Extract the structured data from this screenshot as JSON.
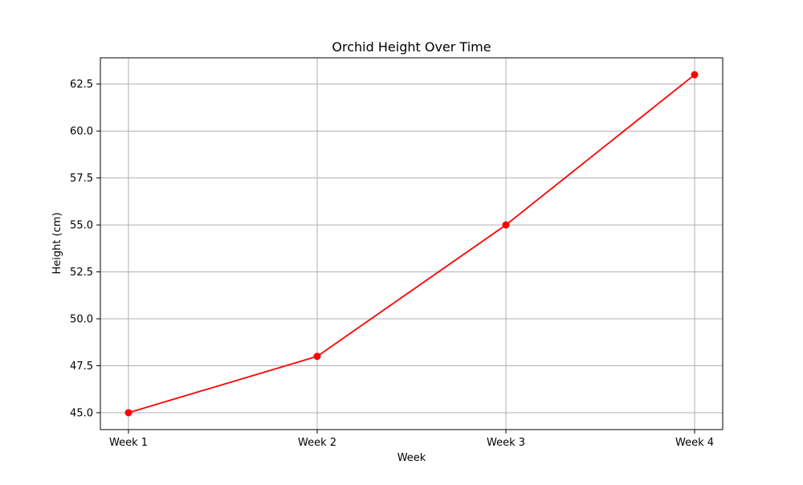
{
  "chart_data": {
    "type": "line",
    "title": "Orchid Height Over Time",
    "xlabel": "Week",
    "ylabel": "Height (cm)",
    "categories": [
      "Week 1",
      "Week 2",
      "Week 3",
      "Week 4"
    ],
    "series": [
      {
        "values": [
          45.0,
          48.0,
          55.0,
          63.0
        ],
        "color": "#ff0000",
        "marker": "circle"
      }
    ],
    "ylim": [
      44.1,
      63.9
    ],
    "yticks": [
      "45.0",
      "47.5",
      "50.0",
      "52.5",
      "55.0",
      "57.5",
      "60.0",
      "62.5"
    ],
    "grid": true
  }
}
